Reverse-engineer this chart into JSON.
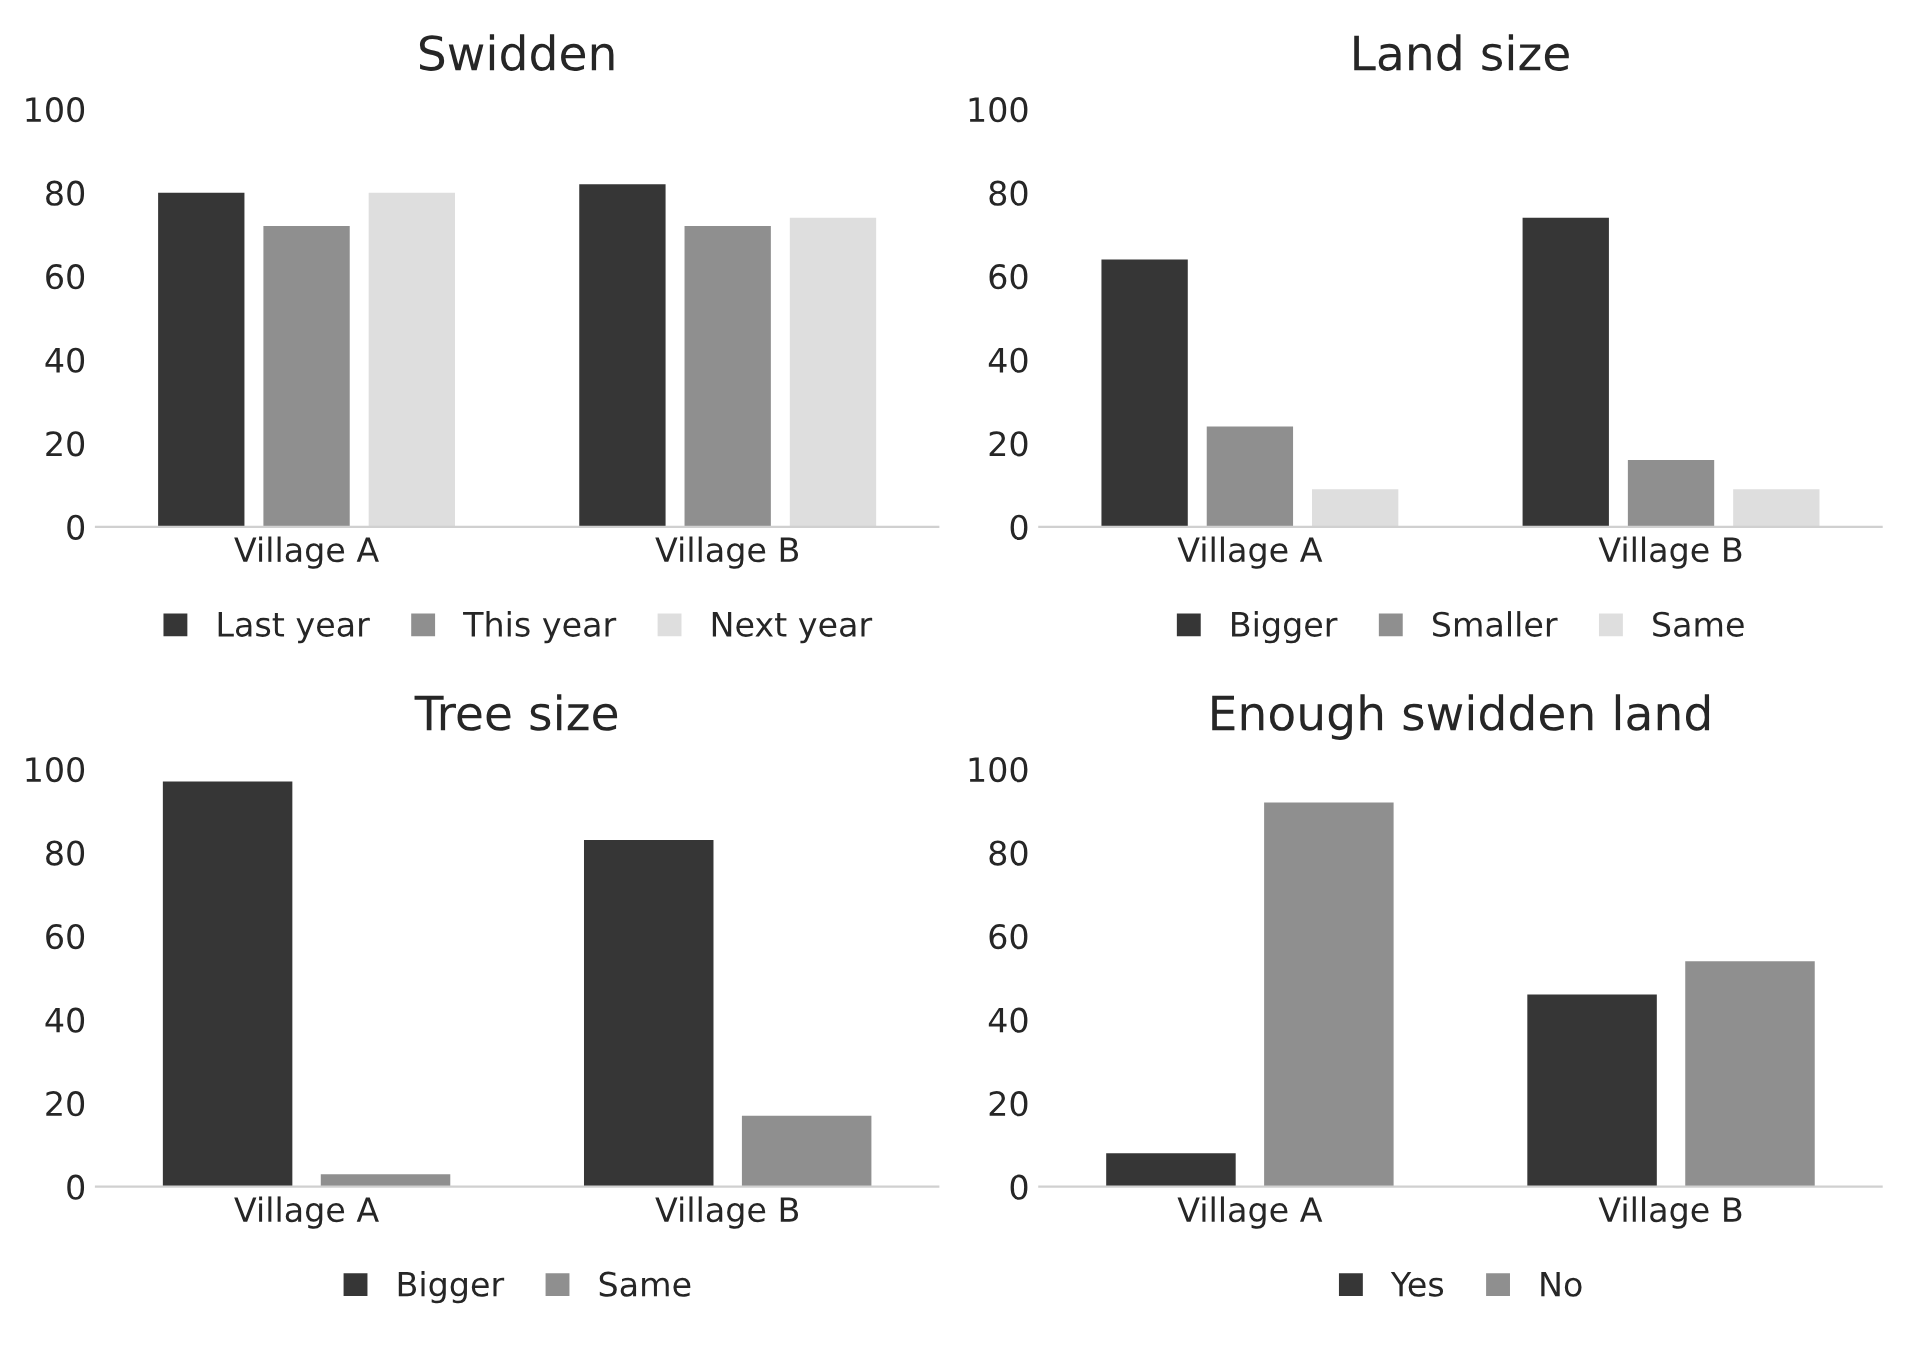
{
  "chart_data": [
    {
      "type": "bar",
      "title": "Swidden",
      "categories": [
        "Village A",
        "Village B"
      ],
      "ylim": [
        0,
        100
      ],
      "yticks": [
        0,
        20,
        40,
        60,
        80,
        100
      ],
      "grid": false,
      "legend": "bottom",
      "series": [
        {
          "name": "Last year",
          "color": "#363636",
          "values": [
            80,
            82
          ]
        },
        {
          "name": "This year",
          "color": "#8f8f8f",
          "values": [
            72,
            72
          ]
        },
        {
          "name": "Next year",
          "color": "#dedede",
          "values": [
            80,
            74
          ]
        }
      ]
    },
    {
      "type": "bar",
      "title": "Land size",
      "categories": [
        "Village A",
        "Village B"
      ],
      "ylim": [
        0,
        100
      ],
      "yticks": [
        0,
        20,
        40,
        60,
        80,
        100
      ],
      "grid": false,
      "legend": "bottom",
      "series": [
        {
          "name": "Bigger",
          "color": "#363636",
          "values": [
            64,
            74
          ]
        },
        {
          "name": "Smaller",
          "color": "#8f8f8f",
          "values": [
            24,
            16
          ]
        },
        {
          "name": "Same",
          "color": "#dedede",
          "values": [
            9,
            9
          ]
        }
      ]
    },
    {
      "type": "bar",
      "title": "Tree size",
      "categories": [
        "Village A",
        "Village B"
      ],
      "ylim": [
        0,
        100
      ],
      "yticks": [
        0,
        20,
        40,
        60,
        80,
        100
      ],
      "grid": false,
      "legend": "bottom",
      "series": [
        {
          "name": "Bigger",
          "color": "#363636",
          "values": [
            97,
            83
          ]
        },
        {
          "name": "Same",
          "color": "#8f8f8f",
          "values": [
            3,
            17
          ]
        }
      ]
    },
    {
      "type": "bar",
      "title": "Enough swidden land",
      "categories": [
        "Village A",
        "Village B"
      ],
      "ylim": [
        0,
        100
      ],
      "yticks": [
        0,
        20,
        40,
        60,
        80,
        100
      ],
      "grid": false,
      "legend": "bottom",
      "series": [
        {
          "name": "Yes",
          "color": "#363636",
          "values": [
            8,
            46
          ]
        },
        {
          "name": "No",
          "color": "#8f8f8f",
          "values": [
            92,
            54
          ]
        }
      ]
    }
  ]
}
